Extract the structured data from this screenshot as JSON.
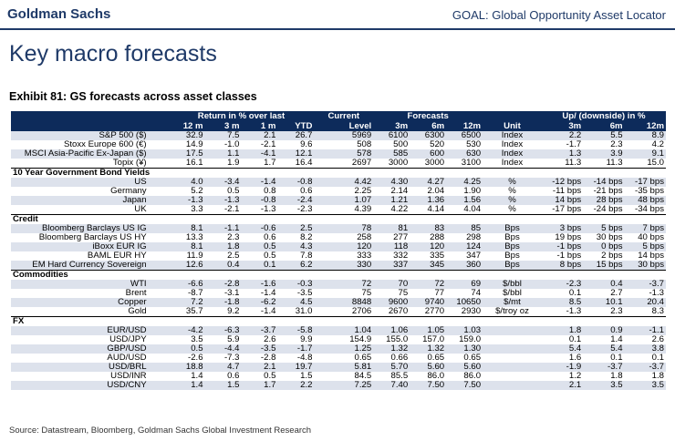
{
  "header": {
    "brand": "Goldman Sachs",
    "report": "GOAL: Global Opportunity Asset Locator"
  },
  "page_title": "Key macro forecasts",
  "exhibit_title": "Exhibit 81: GS forecasts across asset classes",
  "table": {
    "group_headers": {
      "returns": "Return in % over last",
      "current": "Current",
      "forecasts": "Forecasts",
      "updown": "Up/ (downside) in %"
    },
    "columns": [
      "",
      "12 m",
      "3 m",
      "1 m",
      "YTD",
      "Level",
      "3m",
      "6m",
      "12m",
      "Unit",
      "3m",
      "6m",
      "12m"
    ],
    "sections": [
      {
        "title": "",
        "rows": [
          [
            "S&P 500 ($)",
            "32.9",
            "7.5",
            "2.1",
            "26.7",
            "5969",
            "6100",
            "6300",
            "6500",
            "Index",
            "2.2",
            "5.5",
            "8.9"
          ],
          [
            "Stoxx Europe 600 (€)",
            "14.9",
            "-1.0",
            "-2.1",
            "9.6",
            "508",
            "500",
            "520",
            "530",
            "Index",
            "-1.7",
            "2.3",
            "4.2"
          ],
          [
            "MSCI Asia-Pacific Ex-Japan ($)",
            "17.5",
            "1.1",
            "-4.1",
            "12.1",
            "578",
            "585",
            "600",
            "630",
            "Index",
            "1.3",
            "3.9",
            "9.1"
          ],
          [
            "Topix (¥)",
            "16.1",
            "1.9",
            "1.7",
            "16.4",
            "2697",
            "3000",
            "3000",
            "3100",
            "Index",
            "11.3",
            "11.3",
            "15.0"
          ]
        ]
      },
      {
        "title": "10 Year Government Bond Yields",
        "rows": [
          [
            "US",
            "4.0",
            "-3.4",
            "-1.4",
            "-0.8",
            "4.42",
            "4.30",
            "4.27",
            "4.25",
            "%",
            "-12 bps",
            "-14 bps",
            "-17 bps"
          ],
          [
            "Germany",
            "5.2",
            "0.5",
            "0.8",
            "0.6",
            "2.25",
            "2.14",
            "2.04",
            "1.90",
            "%",
            "-11 bps",
            "-21 bps",
            "-35 bps"
          ],
          [
            "Japan",
            "-1.3",
            "-1.3",
            "-0.8",
            "-2.4",
            "1.07",
            "1.21",
            "1.36",
            "1.56",
            "%",
            "14 bps",
            "28 bps",
            "48 bps"
          ],
          [
            "UK",
            "3.3",
            "-2.1",
            "-1.3",
            "-2.3",
            "4.39",
            "4.22",
            "4.14",
            "4.04",
            "%",
            "-17 bps",
            "-24 bps",
            "-34 bps"
          ]
        ]
      },
      {
        "title": "Credit",
        "rows": [
          [
            "Bloomberg Barclays US IG",
            "8.1",
            "-1.1",
            "-0.6",
            "2.5",
            "78",
            "81",
            "83",
            "85",
            "Bps",
            "3 bps",
            "5 bps",
            "7 bps"
          ],
          [
            "Bloomberg Barclays US HY",
            "13.3",
            "2.3",
            "0.6",
            "8.2",
            "258",
            "277",
            "288",
            "298",
            "Bps",
            "19 bps",
            "30 bps",
            "40 bps"
          ],
          [
            "iBoxx EUR IG",
            "8.1",
            "1.8",
            "0.5",
            "4.3",
            "120",
            "118",
            "120",
            "124",
            "Bps",
            "-1 bps",
            "0 bps",
            "5 bps"
          ],
          [
            "BAML EUR HY",
            "11.9",
            "2.5",
            "0.5",
            "7.8",
            "333",
            "332",
            "335",
            "347",
            "Bps",
            "-1 bps",
            "2 bps",
            "14 bps"
          ],
          [
            "EM Hard Currency Sovereign",
            "12.6",
            "0.4",
            "0.1",
            "6.2",
            "330",
            "337",
            "345",
            "360",
            "Bps",
            "8 bps",
            "15 bps",
            "30 bps"
          ]
        ]
      },
      {
        "title": "Commodities",
        "rows": [
          [
            "WTI",
            "-6.6",
            "-2.8",
            "-1.6",
            "-0.3",
            "72",
            "70",
            "72",
            "69",
            "$/bbl",
            "-2.3",
            "0.4",
            "-3.7"
          ],
          [
            "Brent",
            "-8.7",
            "-3.1",
            "-1.4",
            "-3.5",
            "75",
            "75",
            "77",
            "74",
            "$/bbl",
            "0.1",
            "2.7",
            "-1.3"
          ],
          [
            "Copper",
            "7.2",
            "-1.8",
            "-6.2",
            "4.5",
            "8848",
            "9600",
            "9740",
            "10650",
            "$/mt",
            "8.5",
            "10.1",
            "20.4"
          ],
          [
            "Gold",
            "35.7",
            "9.2",
            "-1.4",
            "31.0",
            "2706",
            "2670",
            "2770",
            "2930",
            "$/troy oz",
            "-1.3",
            "2.3",
            "8.3"
          ]
        ]
      },
      {
        "title": "FX",
        "rows": [
          [
            "EUR/USD",
            "-4.2",
            "-6.3",
            "-3.7",
            "-5.8",
            "1.04",
            "1.06",
            "1.05",
            "1.03",
            "",
            "1.8",
            "0.9",
            "-1.1"
          ],
          [
            "USD/JPY",
            "3.5",
            "5.9",
            "2.6",
            "9.9",
            "154.9",
            "155.0",
            "157.0",
            "159.0",
            "",
            "0.1",
            "1.4",
            "2.6"
          ],
          [
            "GBP/USD",
            "0.5",
            "-4.4",
            "-3.5",
            "-1.7",
            "1.25",
            "1.32",
            "1.32",
            "1.30",
            "",
            "5.4",
            "5.4",
            "3.8"
          ],
          [
            "AUD/USD",
            "-2.6",
            "-7.3",
            "-2.8",
            "-4.8",
            "0.65",
            "0.66",
            "0.65",
            "0.65",
            "",
            "1.6",
            "0.1",
            "0.1"
          ],
          [
            "USD/BRL",
            "18.8",
            "4.7",
            "2.1",
            "19.7",
            "5.81",
            "5.70",
            "5.60",
            "5.60",
            "",
            "-1.9",
            "-3.7",
            "-3.7"
          ],
          [
            "USD/INR",
            "1.4",
            "0.6",
            "0.5",
            "1.5",
            "84.5",
            "85.5",
            "86.0",
            "86.0",
            "",
            "1.2",
            "1.8",
            "1.8"
          ],
          [
            "USD/CNY",
            "1.4",
            "1.5",
            "1.7",
            "2.2",
            "7.25",
            "7.40",
            "7.50",
            "7.50",
            "",
            "2.1",
            "3.5",
            "3.5"
          ]
        ]
      }
    ]
  },
  "source": "Source: Datastream, Bloomberg, Goldman Sachs Global Investment Research"
}
